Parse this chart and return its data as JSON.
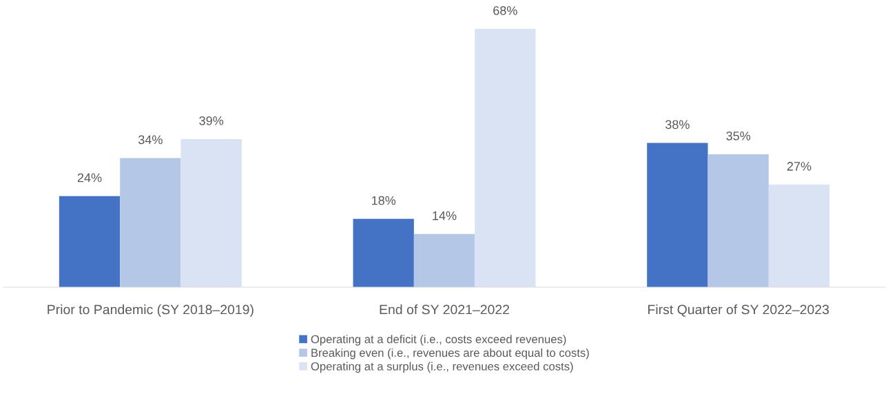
{
  "chart_data": {
    "type": "bar",
    "categories": [
      "Prior to Pandemic (SY 2018–2019)",
      "End of SY 2021–2022",
      "First Quarter of SY 2022–2023"
    ],
    "series": [
      {
        "name": "Operating at a deficit (i.e., costs exceed revenues)",
        "color": "#4472c4",
        "values": [
          24,
          18,
          38
        ],
        "value_labels": [
          "24%",
          "18%",
          "38%"
        ]
      },
      {
        "name": "Breaking even (i.e., revenues are about equal to costs)",
        "color": "#b4c7e7",
        "values": [
          34,
          14,
          35
        ],
        "value_labels": [
          "34%",
          "14%",
          "35%"
        ]
      },
      {
        "name": "Operating at a surplus (i.e., revenues exceed costs)",
        "color": "#dae3f3",
        "values": [
          39,
          68,
          27
        ],
        "value_labels": [
          "39%",
          "68%",
          "27%"
        ]
      }
    ],
    "tick_labels": "x",
    "grid": false,
    "legend": "bottom"
  }
}
